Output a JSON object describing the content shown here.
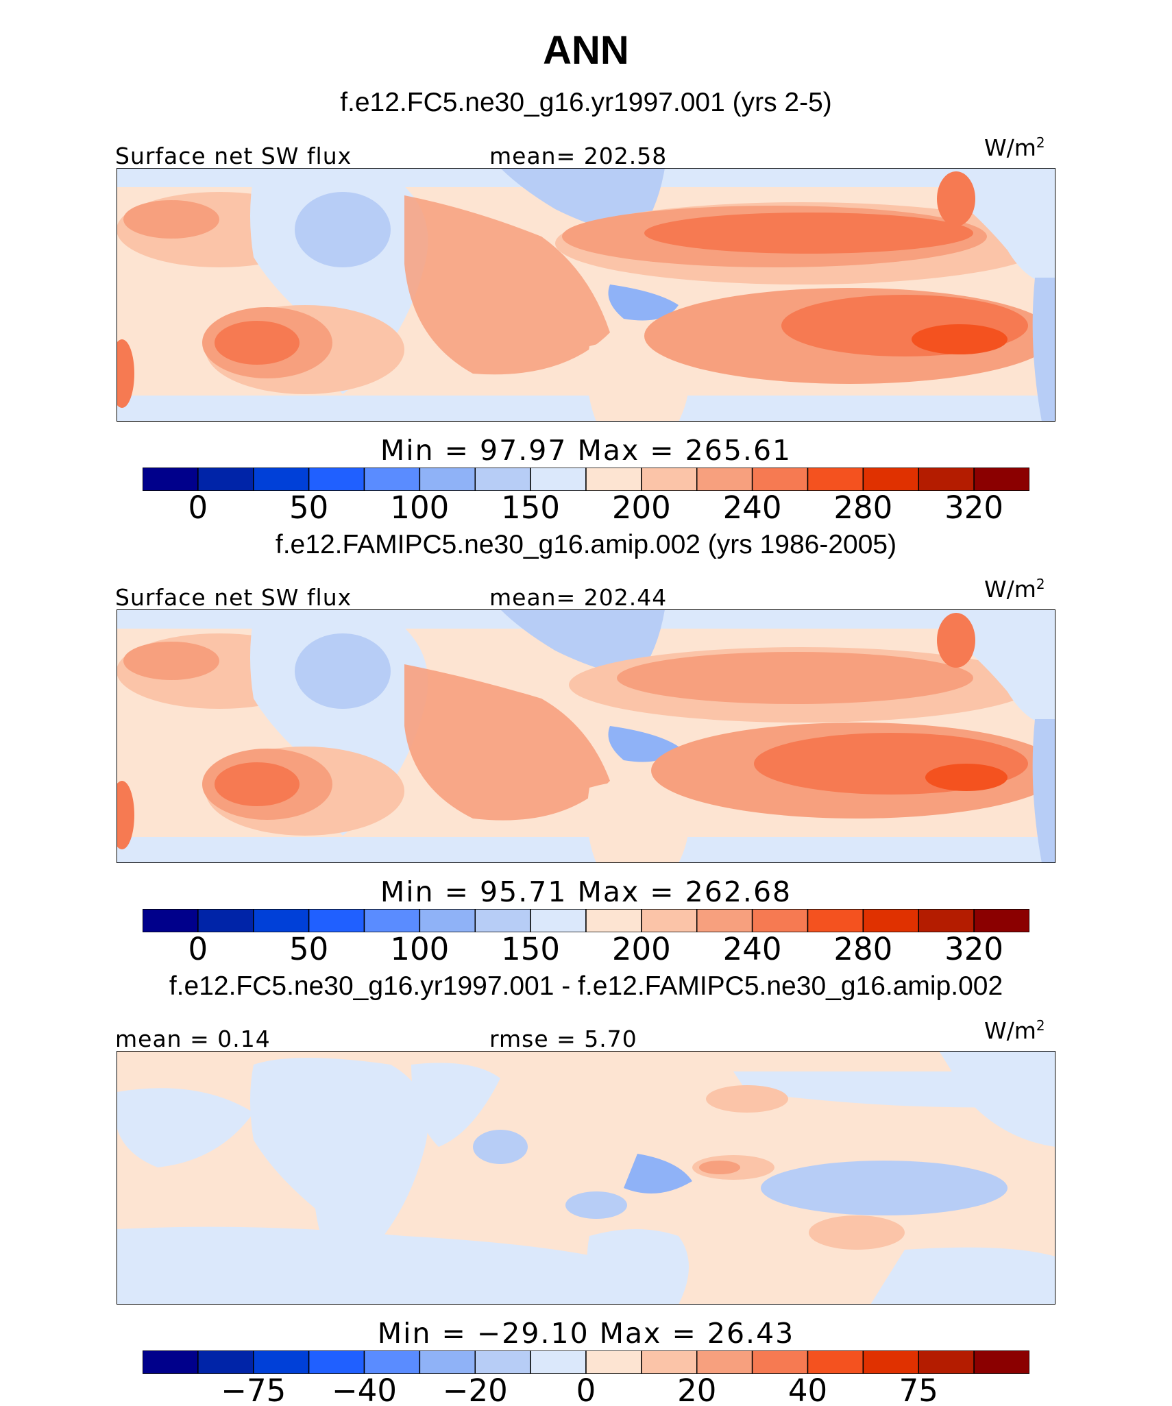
{
  "title": "ANN",
  "chart_data": [
    {
      "type": "heatmap",
      "subtitle": "f.e12.FC5.ne30_g16.yr1997.001 (yrs 2-5)",
      "variable": "Surface net SW flux",
      "left_label": "Surface net SW flux",
      "center_label": "mean= 202.58",
      "units": "W/m",
      "units_exp": "2",
      "mean": 202.58,
      "min": 97.97,
      "max": 265.61,
      "minmax_label": "Min =   97.97  Max  =  265.61",
      "colorbar_colors": [
        "#00008b",
        "#0024a8",
        "#0040d8",
        "#2060ff",
        "#5a8cff",
        "#8fb2f7",
        "#b7cdf6",
        "#dbe8fb",
        "#fde4d2",
        "#fbc4a8",
        "#f7a07e",
        "#f67a52",
        "#f4521f",
        "#e03100",
        "#b41c00",
        "#8b0000"
      ],
      "colorbar_ticks": [
        "0",
        "50",
        "100",
        "150",
        "200",
        "240",
        "280",
        "320"
      ],
      "colorbar_tick_values": [
        0,
        50,
        100,
        150,
        200,
        240,
        280,
        320
      ]
    },
    {
      "type": "heatmap",
      "subtitle": "f.e12.FAMIPC5.ne30_g16.amip.002 (yrs 1986-2005)",
      "variable": "Surface net SW flux",
      "left_label": "Surface net SW flux",
      "center_label": "mean= 202.44",
      "units": "W/m",
      "units_exp": "2",
      "mean": 202.44,
      "min": 95.71,
      "max": 262.68,
      "minmax_label": "Min  =   95.71  Max  =  262.68",
      "colorbar_colors": [
        "#00008b",
        "#0024a8",
        "#0040d8",
        "#2060ff",
        "#5a8cff",
        "#8fb2f7",
        "#b7cdf6",
        "#dbe8fb",
        "#fde4d2",
        "#fbc4a8",
        "#f7a07e",
        "#f67a52",
        "#f4521f",
        "#e03100",
        "#b41c00",
        "#8b0000"
      ],
      "colorbar_ticks": [
        "0",
        "50",
        "100",
        "150",
        "200",
        "240",
        "280",
        "320"
      ],
      "colorbar_tick_values": [
        0,
        50,
        100,
        150,
        200,
        240,
        280,
        320
      ]
    },
    {
      "type": "heatmap",
      "subtitle": "f.e12.FC5.ne30_g16.yr1997.001 - f.e12.FAMIPC5.ne30_g16.amip.002",
      "left_label": "mean =    0.14",
      "center_label": "rmse =    5.70",
      "units": "W/m",
      "units_exp": "2",
      "mean": 0.14,
      "rmse": 5.7,
      "min": -29.1,
      "max": 26.43,
      "minmax_label": "Min  = −29.10  Max  =   26.43",
      "colorbar_colors": [
        "#00008b",
        "#0024a8",
        "#0040d8",
        "#2060ff",
        "#5a8cff",
        "#8fb2f7",
        "#b7cdf6",
        "#dbe8fb",
        "#fde4d2",
        "#fbc4a8",
        "#f7a07e",
        "#f67a52",
        "#f4521f",
        "#e03100",
        "#b41c00",
        "#8b0000"
      ],
      "colorbar_ticks": [
        "−75",
        "−40",
        "−20",
        "0",
        "20",
        "40",
        "75"
      ],
      "colorbar_tick_values": [
        -75,
        -40,
        -20,
        0,
        20,
        40,
        75
      ]
    }
  ]
}
